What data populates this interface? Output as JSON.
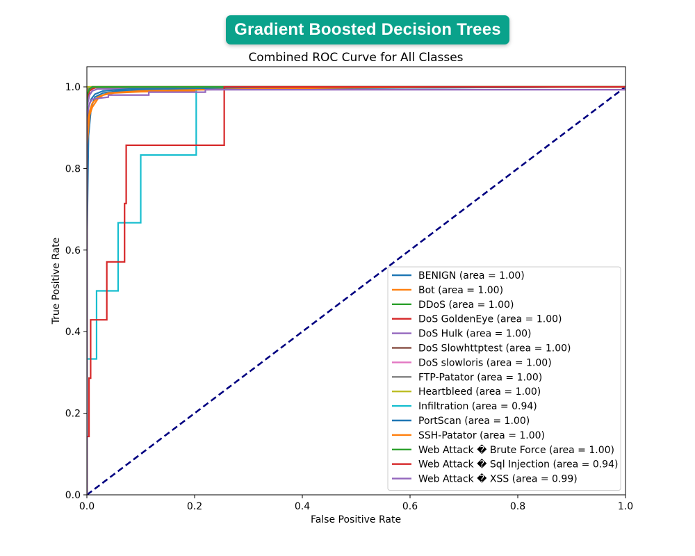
{
  "header": {
    "badge_title": "Gradient Boosted Decision Trees"
  },
  "chart_data": {
    "type": "line",
    "title": "Combined ROC Curve for All Classes",
    "xlabel": "False Positive Rate",
    "ylabel": "True Positive Rate",
    "xlim": [
      0.0,
      1.0
    ],
    "ylim": [
      0.0,
      1.0
    ],
    "xticks": [
      "0.0",
      "0.2",
      "0.4",
      "0.6",
      "0.8",
      "1.0"
    ],
    "yticks": [
      "0.0",
      "0.2",
      "0.4",
      "0.6",
      "0.8",
      "1.0"
    ],
    "grid": false,
    "legend_position": "lower-right",
    "series": [
      {
        "name": "BENIGN (area = 1.00)",
        "color": "#1f77b4",
        "points": [
          [
            0,
            0
          ],
          [
            0,
            0.6
          ],
          [
            0.003,
            0.88
          ],
          [
            0.008,
            0.95
          ],
          [
            0.015,
            0.975
          ],
          [
            0.03,
            0.985
          ],
          [
            0.06,
            0.99
          ],
          [
            0.15,
            0.995
          ],
          [
            1,
            1
          ]
        ]
      },
      {
        "name": "Bot (area = 1.00)",
        "color": "#ff7f0e",
        "points": [
          [
            0,
            0
          ],
          [
            0,
            0.85
          ],
          [
            0.005,
            0.93
          ],
          [
            0.01,
            0.95
          ],
          [
            0.015,
            0.96
          ],
          [
            0.02,
            0.97
          ],
          [
            0.03,
            0.98
          ],
          [
            0.05,
            0.985
          ],
          [
            0.1,
            0.988
          ],
          [
            0.2,
            0.99
          ],
          [
            0.2,
            1
          ],
          [
            1,
            1
          ]
        ]
      },
      {
        "name": "DDoS (area = 1.00)",
        "color": "#2ca02c",
        "points": [
          [
            0,
            0
          ],
          [
            0,
            0.97
          ],
          [
            0.005,
            0.99
          ],
          [
            0.01,
            0.998
          ],
          [
            1,
            1
          ]
        ]
      },
      {
        "name": "DoS GoldenEye (area = 1.00)",
        "color": "#d62728",
        "points": [
          [
            0,
            0
          ],
          [
            0,
            0.96
          ],
          [
            0.005,
            0.99
          ],
          [
            0.01,
            0.995
          ],
          [
            0.02,
            1
          ],
          [
            1,
            1
          ]
        ]
      },
      {
        "name": "DoS Hulk (area = 1.00)",
        "color": "#9467bd",
        "points": [
          [
            0,
            0
          ],
          [
            0,
            0.95
          ],
          [
            0.005,
            0.98
          ],
          [
            0.01,
            0.99
          ],
          [
            0.02,
            0.995
          ],
          [
            1,
            1
          ]
        ]
      },
      {
        "name": "DoS Slowhttptest (area = 1.00)",
        "color": "#8c564b",
        "points": [
          [
            0,
            0
          ],
          [
            0,
            0.98
          ],
          [
            0.005,
            0.995
          ],
          [
            0.01,
            1
          ],
          [
            1,
            1
          ]
        ]
      },
      {
        "name": "DoS slowloris (area = 1.00)",
        "color": "#e377c2",
        "points": [
          [
            0,
            0
          ],
          [
            0,
            0.98
          ],
          [
            0.005,
            0.995
          ],
          [
            0.01,
            1
          ],
          [
            1,
            1
          ]
        ]
      },
      {
        "name": "FTP-Patator (area = 1.00)",
        "color": "#7f7f7f",
        "points": [
          [
            0,
            0
          ],
          [
            0,
            0.99
          ],
          [
            0.005,
            1
          ],
          [
            1,
            1
          ]
        ]
      },
      {
        "name": "Heartbleed (area = 1.00)",
        "color": "#bcbd22",
        "points": [
          [
            0,
            0
          ],
          [
            0,
            1
          ],
          [
            1,
            1
          ]
        ]
      },
      {
        "name": "Infiltration (area = 0.94)",
        "color": "#17becf",
        "points": [
          [
            0,
            0
          ],
          [
            0,
            0.333
          ],
          [
            0.018,
            0.333
          ],
          [
            0.018,
            0.5
          ],
          [
            0.058,
            0.5
          ],
          [
            0.058,
            0.667
          ],
          [
            0.1,
            0.667
          ],
          [
            0.1,
            0.833
          ],
          [
            0.203,
            0.833
          ],
          [
            0.203,
            1
          ],
          [
            1,
            1
          ]
        ]
      },
      {
        "name": "PortScan (area = 1.00)",
        "color": "#1f77b4",
        "points": [
          [
            0,
            0
          ],
          [
            0,
            0.9
          ],
          [
            0.003,
            0.95
          ],
          [
            0.008,
            0.97
          ],
          [
            0.015,
            0.982
          ],
          [
            0.03,
            0.99
          ],
          [
            0.08,
            0.995
          ],
          [
            1,
            1
          ]
        ]
      },
      {
        "name": "SSH-Patator (area = 1.00)",
        "color": "#ff7f0e",
        "points": [
          [
            0,
            0
          ],
          [
            0,
            0.9
          ],
          [
            0.005,
            0.94
          ],
          [
            0.01,
            0.96
          ],
          [
            0.02,
            0.975
          ],
          [
            0.04,
            0.985
          ],
          [
            0.1,
            0.99
          ],
          [
            0.3,
            0.995
          ],
          [
            0.5,
            0.998
          ],
          [
            0.7,
            1
          ],
          [
            1,
            1
          ]
        ]
      },
      {
        "name": "Web Attack � Brute Force (area = 1.00)",
        "color": "#2ca02c",
        "points": [
          [
            0,
            0
          ],
          [
            0,
            0.98
          ],
          [
            0.005,
            0.995
          ],
          [
            0.01,
            1
          ],
          [
            1,
            1
          ]
        ]
      },
      {
        "name": "Web Attack � Sql Injection (area = 0.94)",
        "color": "#d62728",
        "points": [
          [
            0,
            0
          ],
          [
            0,
            0.143
          ],
          [
            0.004,
            0.143
          ],
          [
            0.004,
            0.286
          ],
          [
            0.007,
            0.286
          ],
          [
            0.007,
            0.429
          ],
          [
            0.037,
            0.429
          ],
          [
            0.037,
            0.571
          ],
          [
            0.07,
            0.571
          ],
          [
            0.07,
            0.714
          ],
          [
            0.073,
            0.714
          ],
          [
            0.073,
            0.857
          ],
          [
            0.255,
            0.857
          ],
          [
            0.255,
            1
          ],
          [
            0.98,
            1
          ],
          [
            0.98,
            1
          ],
          [
            1,
            1
          ]
        ]
      },
      {
        "name": "Web Attack � XSS (area = 0.99)",
        "color": "#9467bd",
        "points": [
          [
            0,
            0
          ],
          [
            0,
            0.93
          ],
          [
            0.005,
            0.96
          ],
          [
            0.01,
            0.97
          ],
          [
            0.04,
            0.975
          ],
          [
            0.04,
            0.98
          ],
          [
            0.115,
            0.98
          ],
          [
            0.115,
            0.987
          ],
          [
            0.22,
            0.987
          ],
          [
            0.22,
            0.993
          ],
          [
            1,
            0.993
          ],
          [
            1,
            1
          ]
        ]
      }
    ],
    "reference_line": {
      "color": "#000080",
      "style": "dashed",
      "points": [
        [
          0,
          0
        ],
        [
          1,
          1
        ]
      ]
    }
  }
}
